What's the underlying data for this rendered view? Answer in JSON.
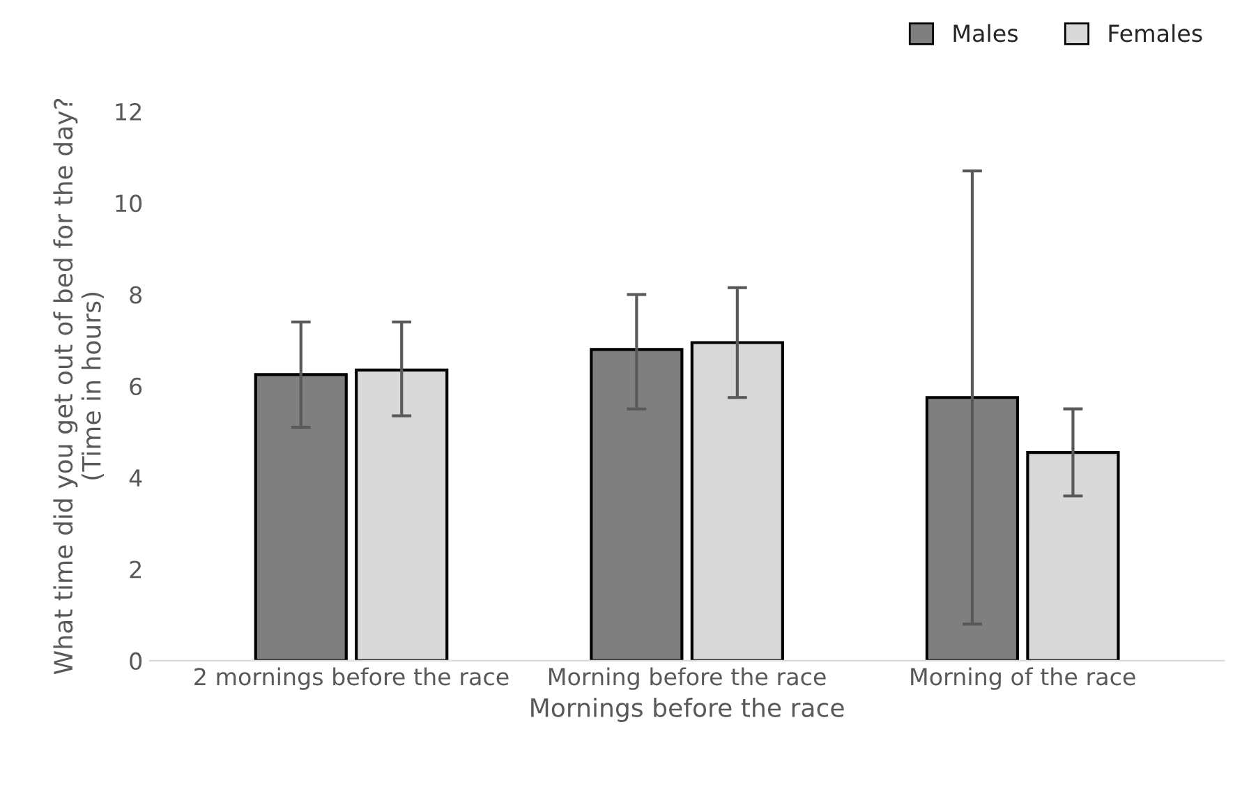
{
  "chart_data": {
    "type": "bar",
    "xlabel": "Mornings before the race",
    "ylabel": "What time did you get out of bed for the day?\n(Time in hours)",
    "categories": [
      "2 mornings before the race",
      "Morning before the race",
      "Morning of the race"
    ],
    "series": [
      {
        "name": "Males",
        "color": "#7f7f7f",
        "values": [
          6.25,
          6.8,
          5.75
        ],
        "errors": [
          [
            5.1,
            7.4
          ],
          [
            5.5,
            8.0
          ],
          [
            0.8,
            10.7
          ]
        ]
      },
      {
        "name": "Females",
        "color": "#d9d9d9",
        "values": [
          6.35,
          6.95,
          4.55
        ],
        "errors": [
          [
            5.35,
            7.4
          ],
          [
            5.75,
            8.15
          ],
          [
            3.6,
            5.5
          ]
        ]
      }
    ],
    "ylim": [
      0,
      12
    ],
    "yticks": [
      0,
      2,
      4,
      6,
      8,
      10,
      12
    ],
    "grid": false,
    "legend": "top right"
  }
}
